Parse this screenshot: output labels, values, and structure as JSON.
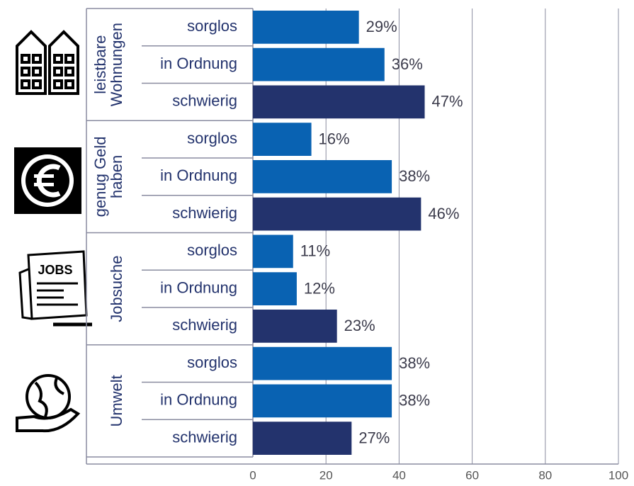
{
  "chart_data": {
    "type": "bar",
    "orientation": "horizontal",
    "groups": [
      {
        "label": [
          "leistbare",
          "Wohnungen"
        ],
        "categories": [
          "sorglos",
          "in Ordnung",
          "schwierig"
        ],
        "values": [
          29,
          36,
          47
        ],
        "value_labels": [
          "29%",
          "36%",
          "47%"
        ]
      },
      {
        "label": [
          "genug Geld",
          "haben"
        ],
        "categories": [
          "sorglos",
          "in Ordnung",
          "schwierig"
        ],
        "values": [
          16,
          38,
          46
        ],
        "value_labels": [
          "16%",
          "38%",
          "46%"
        ]
      },
      {
        "label": [
          "Jobsuche"
        ],
        "icon_text": "JOBS",
        "categories": [
          "sorglos",
          "in Ordnung",
          "schwierig"
        ],
        "values": [
          11,
          12,
          23
        ],
        "value_labels": [
          "11%",
          "12%",
          "23%"
        ]
      },
      {
        "label": [
          "Umwelt"
        ],
        "categories": [
          "sorglos",
          "in Ordnung",
          "schwierig"
        ],
        "values": [
          38,
          38,
          27
        ],
        "value_labels": [
          "38%",
          "38%",
          "27%"
        ]
      }
    ],
    "colors": [
      "#0962b2",
      "#0962b2",
      "#23336d"
    ],
    "xlim": [
      0,
      100
    ],
    "xticks": [
      0,
      20,
      40,
      60,
      80,
      100
    ],
    "grid": true
  }
}
